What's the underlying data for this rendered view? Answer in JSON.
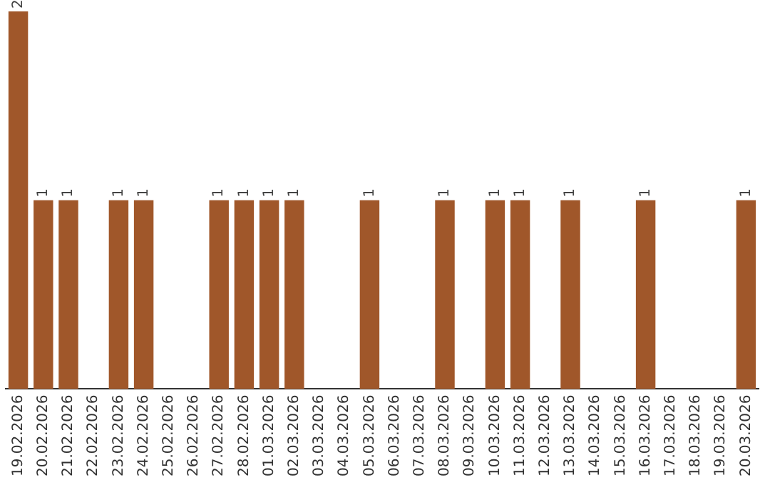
{
  "chart_data": {
    "type": "bar",
    "categories": [
      "19.02.2026",
      "20.02.2026",
      "21.02.2026",
      "22.02.2026",
      "23.02.2026",
      "24.02.2026",
      "25.02.2026",
      "26.02.2026",
      "27.02.2026",
      "28.02.2026",
      "01.03.2026",
      "02.03.2026",
      "03.03.2026",
      "04.03.2026",
      "05.03.2026",
      "06.03.2026",
      "07.03.2026",
      "08.03.2026",
      "09.03.2026",
      "10.03.2026",
      "11.03.2026",
      "12.03.2026",
      "13.03.2026",
      "14.03.2026",
      "15.03.2026",
      "16.03.2026",
      "17.03.2026",
      "18.03.2026",
      "19.03.2026",
      "20.03.2026"
    ],
    "values": [
      2,
      1,
      1,
      0,
      1,
      1,
      0,
      0,
      1,
      1,
      1,
      1,
      0,
      0,
      1,
      0,
      0,
      1,
      0,
      1,
      1,
      0,
      1,
      0,
      0,
      1,
      0,
      0,
      0,
      1
    ],
    "value_labels": [
      "2",
      "1",
      "1",
      null,
      "1",
      "1",
      null,
      null,
      "1",
      "1",
      "1",
      "1",
      null,
      null,
      "1",
      null,
      null,
      "1",
      null,
      "1",
      "1",
      null,
      "1",
      null,
      null,
      "1",
      null,
      null,
      null,
      "1"
    ],
    "color": "#a0572a",
    "grid": false,
    "legend": false,
    "tick_labels": "x"
  }
}
